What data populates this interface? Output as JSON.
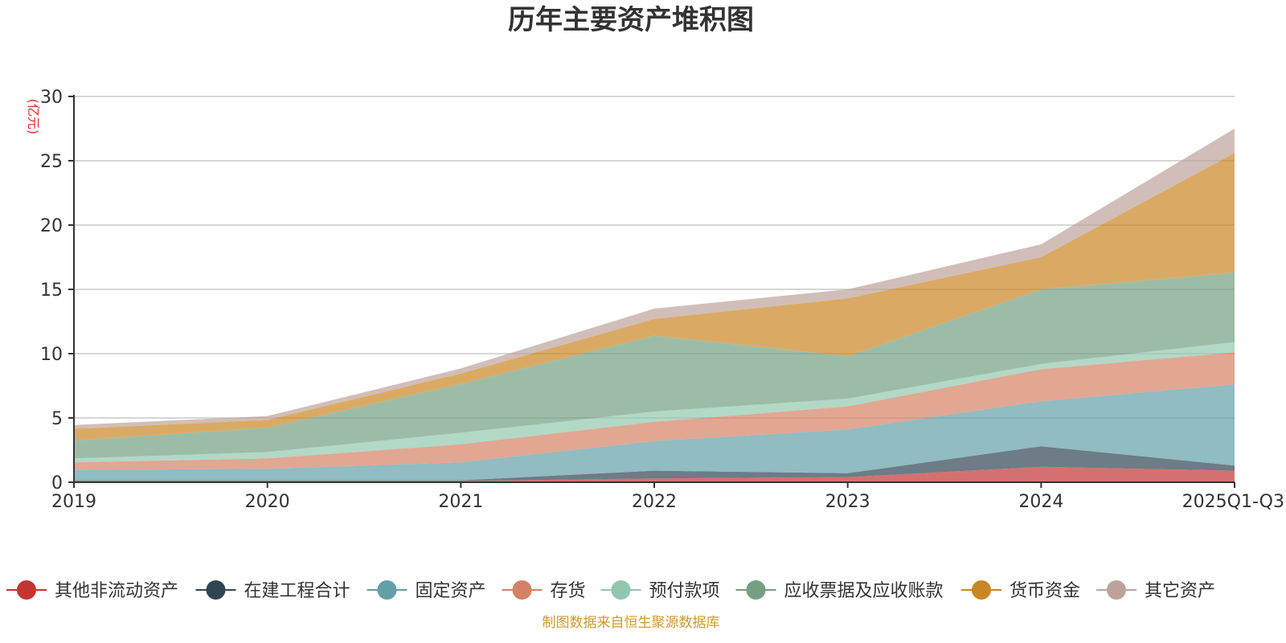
{
  "chart_data": {
    "type": "area",
    "stacked": true,
    "title": "历年主要资产堆积图",
    "ylabel": "亿元",
    "unit_label": "(亿元)",
    "categories": [
      "2019",
      "2020",
      "2021",
      "2022",
      "2023",
      "2024",
      "2025Q1-Q3"
    ],
    "ylim": [
      0,
      30
    ],
    "yticks": [
      0,
      5,
      10,
      15,
      20,
      25,
      30
    ],
    "grid": true,
    "legend_position": "bottom",
    "series": [
      {
        "name": "其他非流动资产",
        "color": "#c23531",
        "values": [
          0.1,
          0.1,
          0.1,
          0.3,
          0.4,
          1.2,
          0.9
        ]
      },
      {
        "name": "在建工程合计",
        "color": "#2f4554",
        "values": [
          0.05,
          0.05,
          0.05,
          0.6,
          0.3,
          1.6,
          0.4
        ]
      },
      {
        "name": "固定资产",
        "color": "#61a0a8",
        "values": [
          0.8,
          0.9,
          1.4,
          2.3,
          3.4,
          3.5,
          6.3
        ]
      },
      {
        "name": "存货",
        "color": "#d48265",
        "values": [
          0.6,
          0.8,
          1.4,
          1.5,
          1.8,
          2.5,
          2.5
        ]
      },
      {
        "name": "预付款项",
        "color": "#91c7ae",
        "values": [
          0.3,
          0.5,
          0.9,
          0.8,
          0.6,
          0.4,
          0.8
        ]
      },
      {
        "name": "应收票据及应收账款",
        "color": "#749f83",
        "values": [
          1.4,
          1.9,
          3.8,
          5.9,
          3.3,
          5.8,
          5.4
        ]
      },
      {
        "name": "货币资金",
        "color": "#ca8622",
        "values": [
          0.9,
          0.6,
          0.8,
          1.3,
          4.5,
          2.5,
          9.3
        ]
      },
      {
        "name": "其它资产",
        "color": "#bda29a",
        "values": [
          0.3,
          0.3,
          0.4,
          0.8,
          0.7,
          1.0,
          1.9
        ]
      }
    ]
  },
  "footer": {
    "source": "制图数据来自恒生聚源数据库"
  }
}
